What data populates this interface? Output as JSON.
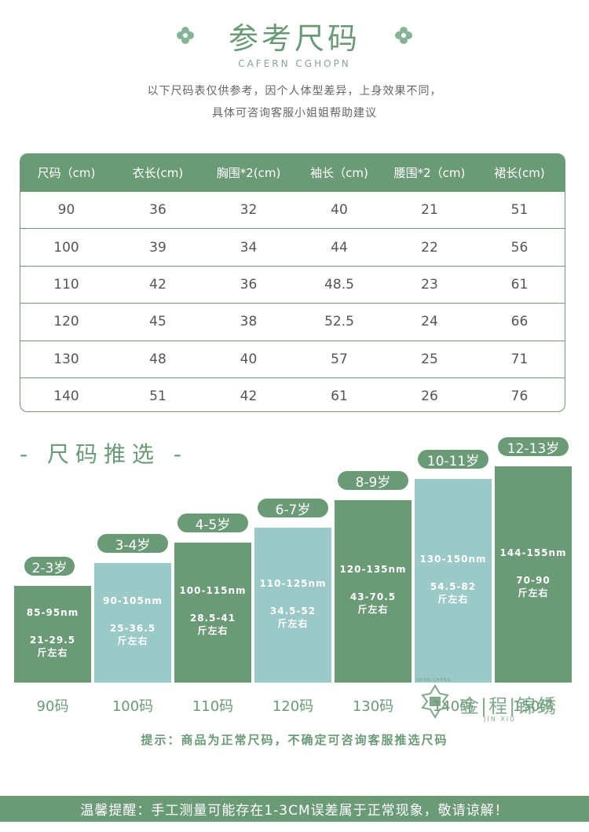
{
  "header": {
    "title": "参考尺码",
    "subtitle_en": "CAFERN CGHOPN",
    "note_line1": "以下尺码表仅供参考，因个人体型差异，上身效果不同，",
    "note_line2": "具体可咨询客服小姐姐帮助建议"
  },
  "size_table": {
    "headers": [
      "尺码（cm)",
      "衣长(cm)",
      "胸围*2(cm)",
      "袖长（cm)",
      "腰围*2（cm)",
      "裙长(cm)"
    ],
    "rows": [
      [
        "90",
        "36",
        "32",
        "40",
        "21",
        "51"
      ],
      [
        "100",
        "39",
        "34",
        "44",
        "22",
        "56"
      ],
      [
        "110",
        "42",
        "36",
        "48.5",
        "23",
        "61"
      ],
      [
        "120",
        "45",
        "38",
        "52.5",
        "24",
        "66"
      ],
      [
        "130",
        "48",
        "40",
        "57",
        "25",
        "71"
      ],
      [
        "140",
        "51",
        "42",
        "61",
        "26",
        "76"
      ]
    ]
  },
  "recommend": {
    "title": "- 尺码推选 -",
    "bars": [
      {
        "age": "2-3岁",
        "height": "85-95nm",
        "weight": "21-29.5",
        "unit": "斤左右",
        "size": "90码",
        "tone": "dark"
      },
      {
        "age": "3-4岁",
        "height": "90-105nm",
        "weight": "25-36.5",
        "unit": "斤左右",
        "size": "100码",
        "tone": "light"
      },
      {
        "age": "4-5岁",
        "height": "100-115nm",
        "weight": "28.5-41",
        "unit": "斤左右",
        "size": "110码",
        "tone": "dark"
      },
      {
        "age": "6-7岁",
        "height": "110-125nm",
        "weight": "34.5-52",
        "unit": "斤左右",
        "size": "120码",
        "tone": "light"
      },
      {
        "age": "8-9岁",
        "height": "120-135nm",
        "weight": "43-70.5",
        "unit": "斤左右",
        "size": "130码",
        "tone": "dark"
      },
      {
        "age": "10-11岁",
        "height": "130-150nm",
        "weight": "54.5-82",
        "unit": "斤左右",
        "size": "140码",
        "tone": "light"
      },
      {
        "age": "12-13岁",
        "height": "144-155nm",
        "weight": "70-90",
        "unit": "斤左右",
        "size": "150码",
        "tone": "dark"
      }
    ]
  },
  "hint": "提示：商品为正常尺码，不确定可咨询客服推选尺码",
  "logo": {
    "brand": "金|程|锦绣",
    "brand_en": "JIN·XIU",
    "brand_top": "QUAN·CHENG"
  },
  "footer": "温馨提醒：手工测量可能存在1-3CM误差属于正常现象，敬请谅解！",
  "colors": {
    "dark_green": "#6a9a76",
    "light_teal": "#9bc9c7"
  }
}
